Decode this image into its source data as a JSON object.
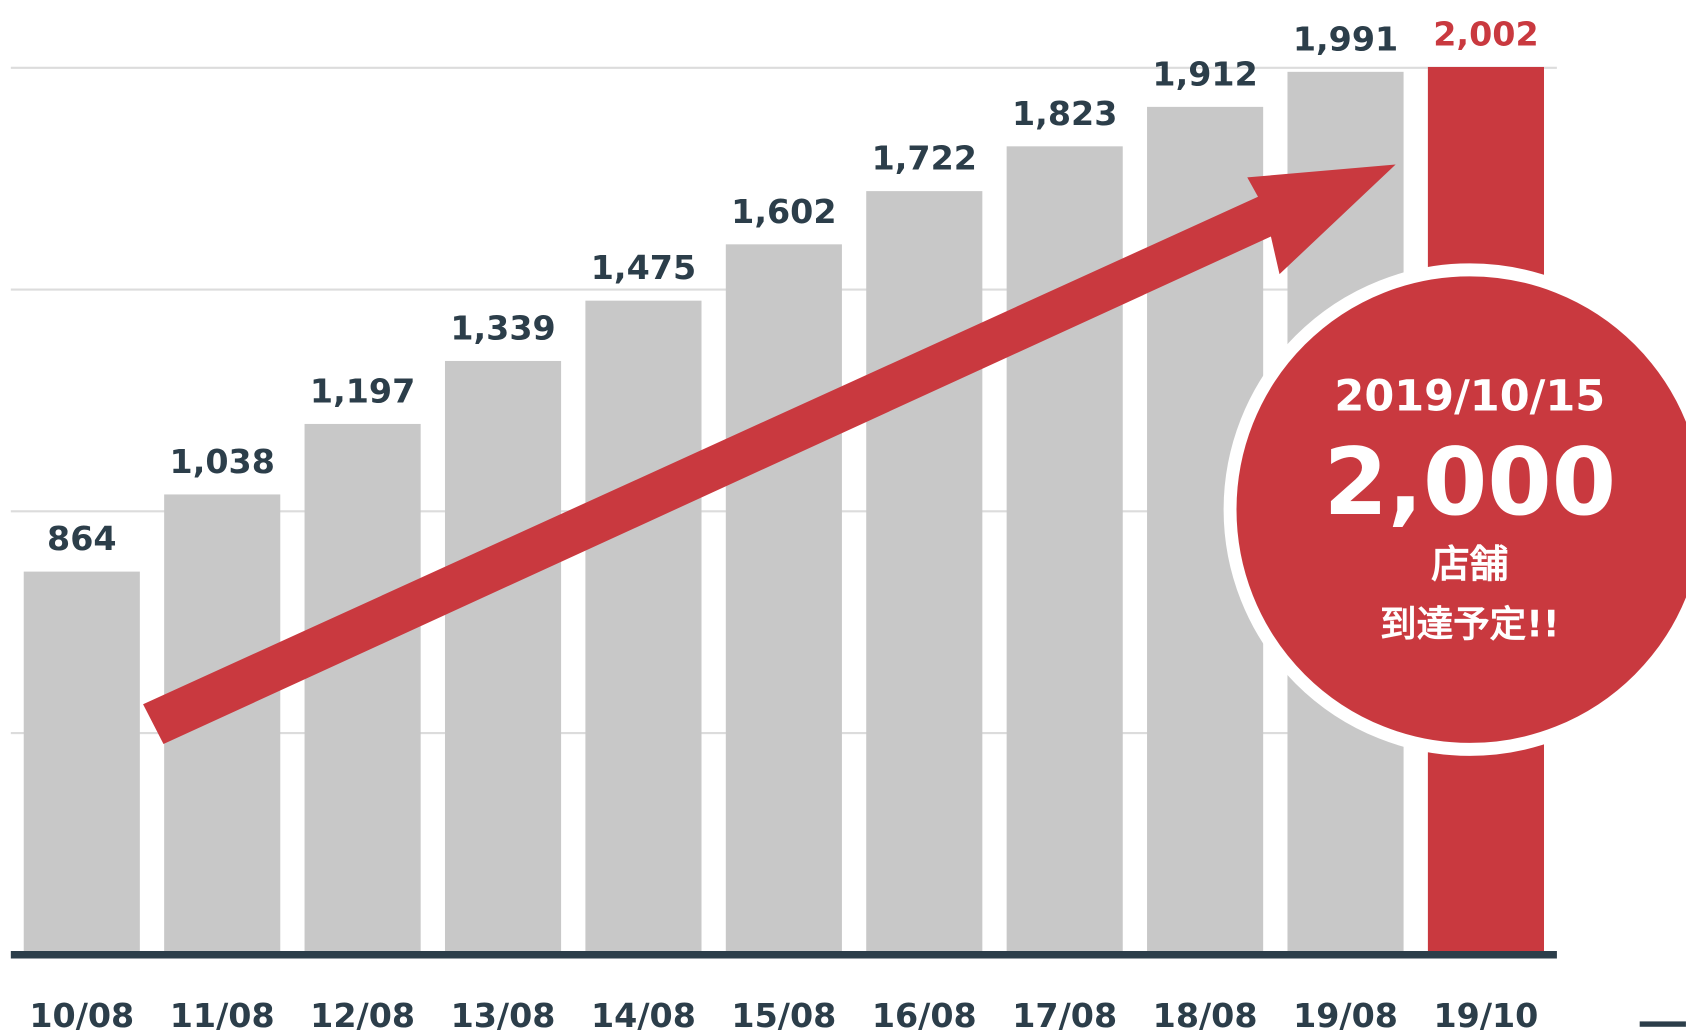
{
  "chart_data": {
    "type": "bar",
    "categories": [
      "10/08",
      "11/08",
      "12/08",
      "13/08",
      "14/08",
      "15/08",
      "16/08",
      "17/08",
      "18/08",
      "19/08",
      "19/10"
    ],
    "values": [
      864,
      1038,
      1197,
      1339,
      1475,
      1602,
      1722,
      1823,
      1912,
      1991,
      2002
    ],
    "value_labels": [
      "864",
      "1,038",
      "1,197",
      "1,339",
      "1,475",
      "1,602",
      "1,722",
      "1,823",
      "1,912",
      "1,991",
      "2,002"
    ],
    "colors": [
      "#c8c8c8",
      "#c8c8c8",
      "#c8c8c8",
      "#c8c8c8",
      "#c8c8c8",
      "#c8c8c8",
      "#c8c8c8",
      "#c8c8c8",
      "#c8c8c8",
      "#c8c8c8",
      "#c9393f"
    ],
    "label_colors": [
      "#2c3e4a",
      "#2c3e4a",
      "#2c3e4a",
      "#2c3e4a",
      "#2c3e4a",
      "#2c3e4a",
      "#2c3e4a",
      "#2c3e4a",
      "#2c3e4a",
      "#2c3e4a",
      "#c9393f"
    ],
    "ylim": [
      0,
      2153
    ],
    "yticks": [
      0,
      500,
      1000,
      1500,
      2000
    ],
    "grid": true,
    "annotation": {
      "date": "2019/10/15",
      "value": "2,000",
      "unit": "店舗",
      "note": "到達予定!!"
    }
  }
}
